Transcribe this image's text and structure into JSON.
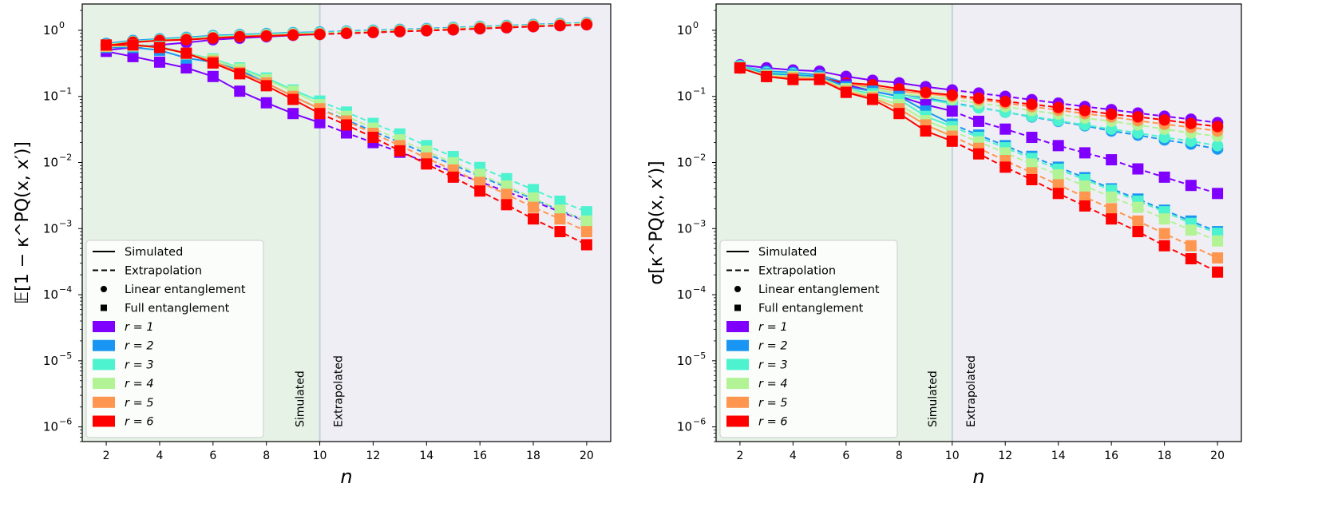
{
  "chart_data": [
    {
      "type": "line",
      "ylabel": "𝔼[1 − κ^PQ(x, x′)]",
      "xlabel": "n",
      "yscale": "log",
      "ylim": [
        6e-07,
        2.5
      ],
      "xlim": [
        1.1,
        20.9
      ],
      "xticks": [
        2,
        4,
        6,
        8,
        10,
        12,
        14,
        16,
        18,
        20
      ],
      "yticks": [
        {
          "exp": "0"
        },
        {
          "exp": "−1"
        },
        {
          "exp": "−2"
        },
        {
          "exp": "−3"
        },
        {
          "exp": "−4"
        },
        {
          "exp": "−5"
        },
        {
          "exp": "−6"
        }
      ],
      "region_labels": {
        "simulated": "Simulated",
        "extrapolated": "Extrapolated"
      },
      "boundary_n": 10,
      "legend_position": "lower-left",
      "x": [
        2,
        3,
        4,
        5,
        6,
        7,
        8,
        9,
        10,
        11,
        12,
        13,
        14,
        15,
        16,
        17,
        18,
        19,
        20
      ],
      "series": [
        {
          "r": 1,
          "entanglement": "linear",
          "values": [
            0.5,
            0.55,
            0.6,
            0.65,
            0.72,
            0.76,
            0.8,
            0.84,
            0.87,
            0.9,
            0.93,
            0.96,
            0.99,
            1.02,
            1.06,
            1.1,
            1.14,
            1.18,
            1.22
          ]
        },
        {
          "r": 2,
          "entanglement": "linear",
          "values": [
            0.63,
            0.7,
            0.74,
            0.78,
            0.83,
            0.86,
            0.89,
            0.92,
            0.94,
            0.97,
            1.0,
            1.03,
            1.06,
            1.1,
            1.14,
            1.18,
            1.22,
            1.26,
            1.3
          ]
        },
        {
          "r": 3,
          "entanglement": "linear",
          "values": [
            0.61,
            0.68,
            0.72,
            0.76,
            0.81,
            0.84,
            0.87,
            0.9,
            0.92,
            0.95,
            0.98,
            1.01,
            1.04,
            1.08,
            1.12,
            1.16,
            1.2,
            1.24,
            1.28
          ]
        },
        {
          "r": 4,
          "entanglement": "linear",
          "values": [
            0.6,
            0.67,
            0.71,
            0.74,
            0.79,
            0.82,
            0.85,
            0.88,
            0.9,
            0.93,
            0.96,
            0.99,
            1.02,
            1.06,
            1.1,
            1.14,
            1.18,
            1.22,
            1.26
          ]
        },
        {
          "r": 5,
          "entanglement": "linear",
          "values": [
            0.59,
            0.66,
            0.7,
            0.73,
            0.77,
            0.81,
            0.83,
            0.86,
            0.88,
            0.91,
            0.94,
            0.97,
            1.0,
            1.04,
            1.08,
            1.12,
            1.16,
            1.2,
            1.24
          ]
        },
        {
          "r": 6,
          "entanglement": "linear",
          "values": [
            0.58,
            0.66,
            0.7,
            0.72,
            0.76,
            0.8,
            0.82,
            0.85,
            0.87,
            0.9,
            0.93,
            0.96,
            0.99,
            1.02,
            1.06,
            1.1,
            1.14,
            1.18,
            1.22
          ]
        },
        {
          "r": 1,
          "entanglement": "full",
          "values": [
            0.48,
            0.4,
            0.33,
            0.27,
            0.2,
            0.12,
            0.08,
            0.055,
            0.04,
            0.028,
            0.02,
            0.0143,
            0.0101,
            0.0072,
            0.0051,
            0.0036,
            0.0026,
            0.0018,
            0.0013
          ]
        },
        {
          "r": 2,
          "entanglement": "full",
          "values": [
            0.55,
            0.55,
            0.5,
            0.38,
            0.33,
            0.25,
            0.16,
            0.1,
            0.065,
            0.044,
            0.0297,
            0.0201,
            0.0136,
            0.0092,
            0.0062,
            0.0042,
            0.0028,
            0.0019,
            0.0013
          ]
        },
        {
          "r": 3,
          "entanglement": "full",
          "values": [
            0.58,
            0.6,
            0.57,
            0.45,
            0.37,
            0.27,
            0.19,
            0.125,
            0.085,
            0.058,
            0.039,
            0.027,
            0.018,
            0.0123,
            0.0084,
            0.0057,
            0.0039,
            0.0026,
            0.0018
          ]
        },
        {
          "r": 4,
          "entanglement": "full",
          "values": [
            0.57,
            0.58,
            0.55,
            0.44,
            0.36,
            0.26,
            0.18,
            0.12,
            0.075,
            0.05,
            0.033,
            0.022,
            0.0148,
            0.0099,
            0.0066,
            0.0044,
            0.0029,
            0.0019,
            0.0013
          ]
        },
        {
          "r": 5,
          "entanglement": "full",
          "values": [
            0.58,
            0.6,
            0.55,
            0.45,
            0.34,
            0.23,
            0.16,
            0.1,
            0.065,
            0.0424,
            0.0276,
            0.018,
            0.0117,
            0.0077,
            0.005,
            0.0033,
            0.0021,
            0.0014,
            0.0009
          ]
        },
        {
          "r": 6,
          "entanglement": "full",
          "values": [
            0.6,
            0.6,
            0.55,
            0.45,
            0.32,
            0.22,
            0.145,
            0.09,
            0.055,
            0.037,
            0.024,
            0.015,
            0.0095,
            0.006,
            0.0037,
            0.0023,
            0.0014,
            0.0009,
            0.00057
          ]
        }
      ]
    },
    {
      "type": "line",
      "ylabel": "σ[κ^PQ(x, x′)]",
      "xlabel": "n",
      "yscale": "log",
      "ylim": [
        6e-07,
        2.5
      ],
      "xlim": [
        1.1,
        20.9
      ],
      "xticks": [
        2,
        4,
        6,
        8,
        10,
        12,
        14,
        16,
        18,
        20
      ],
      "yticks": [
        {
          "exp": "0"
        },
        {
          "exp": "−1"
        },
        {
          "exp": "−2"
        },
        {
          "exp": "−3"
        },
        {
          "exp": "−4"
        },
        {
          "exp": "−5"
        },
        {
          "exp": "−6"
        }
      ],
      "region_labels": {
        "simulated": "Simulated",
        "extrapolated": "Extrapolated"
      },
      "boundary_n": 10,
      "legend_position": "lower-left",
      "x": [
        2,
        3,
        4,
        5,
        6,
        7,
        8,
        9,
        10,
        11,
        12,
        13,
        14,
        15,
        16,
        17,
        18,
        19,
        20
      ],
      "series": [
        {
          "r": 1,
          "entanglement": "linear",
          "values": [
            0.3,
            0.27,
            0.25,
            0.24,
            0.2,
            0.175,
            0.16,
            0.14,
            0.125,
            0.112,
            0.1,
            0.089,
            0.079,
            0.07,
            0.063,
            0.056,
            0.05,
            0.045,
            0.04
          ]
        },
        {
          "r": 2,
          "entanglement": "linear",
          "values": [
            0.29,
            0.24,
            0.23,
            0.21,
            0.16,
            0.13,
            0.11,
            0.095,
            0.08,
            0.068,
            0.058,
            0.049,
            0.042,
            0.036,
            0.03,
            0.026,
            0.022,
            0.019,
            0.016
          ]
        },
        {
          "r": 3,
          "entanglement": "linear",
          "values": [
            0.29,
            0.23,
            0.22,
            0.2,
            0.15,
            0.12,
            0.1,
            0.09,
            0.078,
            0.067,
            0.058,
            0.05,
            0.043,
            0.037,
            0.032,
            0.028,
            0.024,
            0.021,
            0.018
          ]
        },
        {
          "r": 4,
          "entanglement": "linear",
          "values": [
            0.28,
            0.22,
            0.21,
            0.2,
            0.15,
            0.13,
            0.11,
            0.1,
            0.09,
            0.079,
            0.07,
            0.061,
            0.054,
            0.047,
            0.042,
            0.037,
            0.032,
            0.028,
            0.025
          ]
        },
        {
          "r": 5,
          "entanglement": "linear",
          "values": [
            0.28,
            0.21,
            0.2,
            0.19,
            0.155,
            0.14,
            0.12,
            0.11,
            0.1,
            0.089,
            0.079,
            0.07,
            0.062,
            0.055,
            0.049,
            0.043,
            0.038,
            0.034,
            0.03
          ]
        },
        {
          "r": 6,
          "entanglement": "linear",
          "values": [
            0.27,
            0.2,
            0.19,
            0.19,
            0.16,
            0.15,
            0.13,
            0.115,
            0.105,
            0.094,
            0.084,
            0.076,
            0.068,
            0.061,
            0.054,
            0.049,
            0.044,
            0.039,
            0.035
          ]
        },
        {
          "r": 1,
          "entanglement": "full",
          "values": [
            0.27,
            0.2,
            0.2,
            0.19,
            0.15,
            0.12,
            0.1,
            0.075,
            0.06,
            0.042,
            0.032,
            0.024,
            0.018,
            0.014,
            0.011,
            0.008,
            0.006,
            0.0045,
            0.0034
          ]
        },
        {
          "r": 2,
          "entanglement": "full",
          "values": [
            0.28,
            0.22,
            0.21,
            0.2,
            0.14,
            0.12,
            0.1,
            0.06,
            0.038,
            0.026,
            0.018,
            0.0124,
            0.0085,
            0.0059,
            0.004,
            0.0028,
            0.0019,
            0.0013,
            0.0009
          ]
        },
        {
          "r": 3,
          "entanglement": "full",
          "values": [
            0.28,
            0.21,
            0.2,
            0.19,
            0.13,
            0.11,
            0.09,
            0.05,
            0.035,
            0.024,
            0.0167,
            0.0115,
            0.0079,
            0.0055,
            0.0038,
            0.0026,
            0.0018,
            0.0012,
            0.00085
          ]
        },
        {
          "r": 4,
          "entanglement": "full",
          "values": [
            0.27,
            0.21,
            0.2,
            0.19,
            0.13,
            0.1,
            0.075,
            0.043,
            0.03,
            0.0205,
            0.014,
            0.0095,
            0.0065,
            0.0044,
            0.003,
            0.0021,
            0.0014,
            0.00095,
            0.00065
          ]
        },
        {
          "r": 5,
          "entanglement": "full",
          "values": [
            0.27,
            0.2,
            0.19,
            0.185,
            0.12,
            0.095,
            0.065,
            0.037,
            0.025,
            0.0164,
            0.0107,
            0.007,
            0.0046,
            0.003,
            0.002,
            0.0013,
            0.00084,
            0.00055,
            0.00036
          ]
        },
        {
          "r": 6,
          "entanglement": "full",
          "values": [
            0.27,
            0.2,
            0.18,
            0.18,
            0.115,
            0.09,
            0.055,
            0.03,
            0.021,
            0.0135,
            0.0085,
            0.0055,
            0.0034,
            0.0022,
            0.0014,
            0.0009,
            0.00055,
            0.00035,
            0.00022
          ]
        }
      ]
    }
  ],
  "legend": {
    "styles": [
      {
        "label": "Simulated",
        "kind": "solid"
      },
      {
        "label": "Extrapolation",
        "kind": "dashed"
      },
      {
        "label": "Linear entanglement",
        "kind": "circle"
      },
      {
        "label": "Full entanglement",
        "kind": "square"
      }
    ],
    "r_entries": [
      {
        "label": "r = 1",
        "color": "#8000ff"
      },
      {
        "label": "r = 2",
        "color": "#1996f3"
      },
      {
        "label": "r = 3",
        "color": "#4df3ce"
      },
      {
        "label": "r = 4",
        "color": "#b2f396"
      },
      {
        "label": "r = 5",
        "color": "#ff964f"
      },
      {
        "label": "r = 6",
        "color": "#ff0000"
      }
    ]
  },
  "colors": {
    "simulated_region": "#e6f2e6",
    "extrapolated_region": "#f0eef5",
    "boundary": "#c3d0db"
  }
}
